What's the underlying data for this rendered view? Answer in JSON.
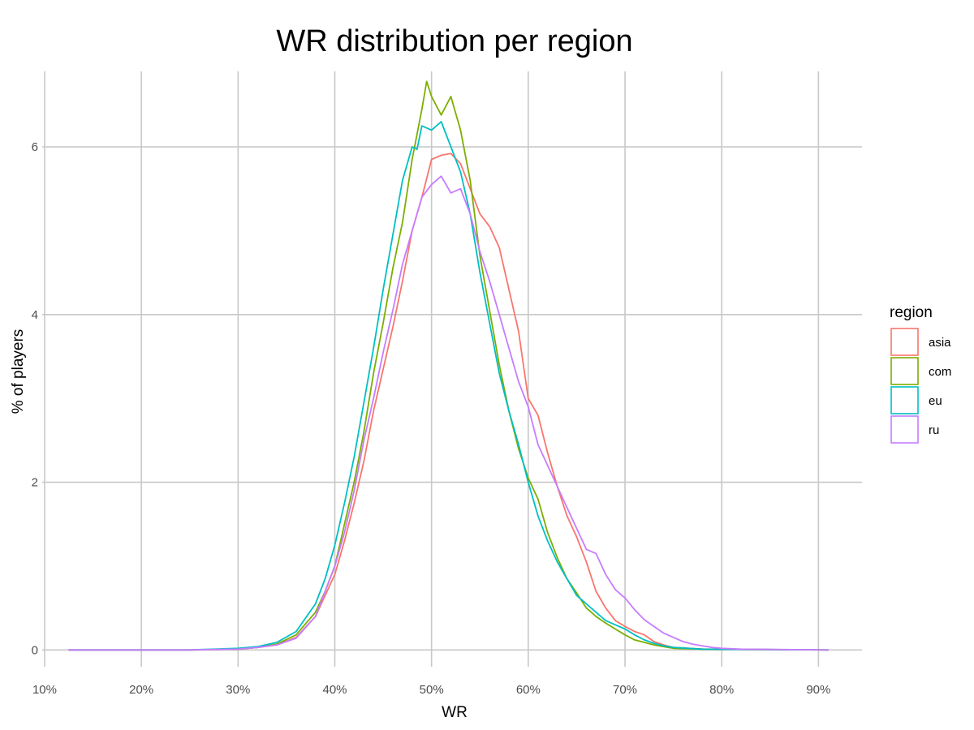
{
  "chart_data": {
    "type": "line",
    "title": "WR distribution per region",
    "xlabel": "WR",
    "ylabel": "% of players",
    "xlim": [
      0.0975,
      0.945
    ],
    "ylim": [
      -0.2,
      6.9
    ],
    "x_ticks": [
      0.1,
      0.2,
      0.3,
      0.4,
      0.5,
      0.6,
      0.7,
      0.8,
      0.9
    ],
    "x_tick_labels": [
      "10%",
      "20%",
      "30%",
      "40%",
      "50%",
      "60%",
      "70%",
      "80%",
      "90%"
    ],
    "y_ticks": [
      0,
      2,
      4,
      6
    ],
    "y_tick_labels": [
      "0",
      "2",
      "4",
      "6"
    ],
    "grid": true,
    "legend": {
      "title": "region",
      "position": "right"
    },
    "series": [
      {
        "name": "asia",
        "color": "#F8766D",
        "points": [
          [
            0.125,
            0
          ],
          [
            0.25,
            0
          ],
          [
            0.3,
            0.01
          ],
          [
            0.32,
            0.03
          ],
          [
            0.34,
            0.06
          ],
          [
            0.36,
            0.15
          ],
          [
            0.38,
            0.4
          ],
          [
            0.39,
            0.65
          ],
          [
            0.4,
            0.9
          ],
          [
            0.41,
            1.3
          ],
          [
            0.42,
            1.75
          ],
          [
            0.43,
            2.25
          ],
          [
            0.44,
            2.85
          ],
          [
            0.45,
            3.35
          ],
          [
            0.46,
            3.85
          ],
          [
            0.47,
            4.4
          ],
          [
            0.48,
            5.0
          ],
          [
            0.49,
            5.4
          ],
          [
            0.5,
            5.85
          ],
          [
            0.51,
            5.9
          ],
          [
            0.52,
            5.92
          ],
          [
            0.53,
            5.8
          ],
          [
            0.54,
            5.5
          ],
          [
            0.55,
            5.2
          ],
          [
            0.56,
            5.05
          ],
          [
            0.57,
            4.8
          ],
          [
            0.58,
            4.3
          ],
          [
            0.59,
            3.8
          ],
          [
            0.6,
            3.0
          ],
          [
            0.61,
            2.8
          ],
          [
            0.62,
            2.35
          ],
          [
            0.63,
            1.95
          ],
          [
            0.64,
            1.6
          ],
          [
            0.65,
            1.35
          ],
          [
            0.66,
            1.05
          ],
          [
            0.67,
            0.7
          ],
          [
            0.68,
            0.5
          ],
          [
            0.69,
            0.35
          ],
          [
            0.7,
            0.28
          ],
          [
            0.71,
            0.22
          ],
          [
            0.72,
            0.18
          ],
          [
            0.73,
            0.1
          ],
          [
            0.74,
            0.06
          ],
          [
            0.75,
            0.03
          ],
          [
            0.78,
            0.01
          ],
          [
            0.91,
            0
          ]
        ]
      },
      {
        "name": "com",
        "color": "#7CAE00",
        "points": [
          [
            0.125,
            0
          ],
          [
            0.25,
            0
          ],
          [
            0.3,
            0.01
          ],
          [
            0.32,
            0.03
          ],
          [
            0.34,
            0.07
          ],
          [
            0.36,
            0.18
          ],
          [
            0.38,
            0.45
          ],
          [
            0.39,
            0.7
          ],
          [
            0.4,
            1.0
          ],
          [
            0.41,
            1.5
          ],
          [
            0.42,
            2.0
          ],
          [
            0.43,
            2.6
          ],
          [
            0.44,
            3.3
          ],
          [
            0.45,
            3.9
          ],
          [
            0.46,
            4.55
          ],
          [
            0.47,
            5.1
          ],
          [
            0.48,
            5.85
          ],
          [
            0.49,
            6.45
          ],
          [
            0.495,
            6.78
          ],
          [
            0.5,
            6.6
          ],
          [
            0.51,
            6.38
          ],
          [
            0.52,
            6.6
          ],
          [
            0.53,
            6.2
          ],
          [
            0.54,
            5.6
          ],
          [
            0.55,
            4.7
          ],
          [
            0.56,
            4.05
          ],
          [
            0.57,
            3.4
          ],
          [
            0.58,
            2.85
          ],
          [
            0.59,
            2.4
          ],
          [
            0.6,
            2.05
          ],
          [
            0.61,
            1.8
          ],
          [
            0.62,
            1.4
          ],
          [
            0.63,
            1.1
          ],
          [
            0.64,
            0.85
          ],
          [
            0.65,
            0.68
          ],
          [
            0.66,
            0.5
          ],
          [
            0.67,
            0.4
          ],
          [
            0.68,
            0.32
          ],
          [
            0.69,
            0.25
          ],
          [
            0.7,
            0.18
          ],
          [
            0.71,
            0.12
          ],
          [
            0.72,
            0.09
          ],
          [
            0.73,
            0.06
          ],
          [
            0.74,
            0.04
          ],
          [
            0.75,
            0.02
          ],
          [
            0.78,
            0.01
          ],
          [
            0.91,
            0
          ]
        ]
      },
      {
        "name": "eu",
        "color": "#00BFC4",
        "points": [
          [
            0.125,
            0
          ],
          [
            0.25,
            0
          ],
          [
            0.3,
            0.02
          ],
          [
            0.32,
            0.04
          ],
          [
            0.34,
            0.09
          ],
          [
            0.36,
            0.22
          ],
          [
            0.38,
            0.55
          ],
          [
            0.39,
            0.85
          ],
          [
            0.4,
            1.25
          ],
          [
            0.41,
            1.75
          ],
          [
            0.42,
            2.3
          ],
          [
            0.43,
            2.95
          ],
          [
            0.44,
            3.6
          ],
          [
            0.45,
            4.3
          ],
          [
            0.46,
            4.95
          ],
          [
            0.47,
            5.6
          ],
          [
            0.48,
            6.0
          ],
          [
            0.485,
            5.97
          ],
          [
            0.49,
            6.25
          ],
          [
            0.5,
            6.2
          ],
          [
            0.51,
            6.3
          ],
          [
            0.52,
            6.0
          ],
          [
            0.53,
            5.7
          ],
          [
            0.54,
            5.2
          ],
          [
            0.55,
            4.5
          ],
          [
            0.56,
            3.9
          ],
          [
            0.57,
            3.3
          ],
          [
            0.58,
            2.85
          ],
          [
            0.59,
            2.45
          ],
          [
            0.6,
            2.0
          ],
          [
            0.61,
            1.6
          ],
          [
            0.62,
            1.3
          ],
          [
            0.63,
            1.05
          ],
          [
            0.64,
            0.85
          ],
          [
            0.65,
            0.65
          ],
          [
            0.66,
            0.55
          ],
          [
            0.67,
            0.45
          ],
          [
            0.68,
            0.35
          ],
          [
            0.69,
            0.3
          ],
          [
            0.7,
            0.25
          ],
          [
            0.71,
            0.18
          ],
          [
            0.72,
            0.12
          ],
          [
            0.73,
            0.08
          ],
          [
            0.74,
            0.05
          ],
          [
            0.75,
            0.03
          ],
          [
            0.78,
            0.01
          ],
          [
            0.91,
            0
          ]
        ]
      },
      {
        "name": "ru",
        "color": "#C77CFF",
        "points": [
          [
            0.125,
            0
          ],
          [
            0.25,
            0
          ],
          [
            0.3,
            0.01
          ],
          [
            0.32,
            0.03
          ],
          [
            0.34,
            0.06
          ],
          [
            0.36,
            0.14
          ],
          [
            0.38,
            0.4
          ],
          [
            0.39,
            0.7
          ],
          [
            0.4,
            1.0
          ],
          [
            0.41,
            1.4
          ],
          [
            0.42,
            1.9
          ],
          [
            0.43,
            2.5
          ],
          [
            0.44,
            3.0
          ],
          [
            0.45,
            3.55
          ],
          [
            0.46,
            4.05
          ],
          [
            0.47,
            4.6
          ],
          [
            0.48,
            5.0
          ],
          [
            0.49,
            5.4
          ],
          [
            0.5,
            5.55
          ],
          [
            0.51,
            5.65
          ],
          [
            0.52,
            5.45
          ],
          [
            0.53,
            5.5
          ],
          [
            0.54,
            5.2
          ],
          [
            0.55,
            4.75
          ],
          [
            0.56,
            4.4
          ],
          [
            0.57,
            4.0
          ],
          [
            0.58,
            3.6
          ],
          [
            0.59,
            3.2
          ],
          [
            0.6,
            2.9
          ],
          [
            0.61,
            2.45
          ],
          [
            0.62,
            2.2
          ],
          [
            0.63,
            1.95
          ],
          [
            0.64,
            1.7
          ],
          [
            0.65,
            1.45
          ],
          [
            0.66,
            1.2
          ],
          [
            0.67,
            1.15
          ],
          [
            0.68,
            0.9
          ],
          [
            0.69,
            0.72
          ],
          [
            0.7,
            0.62
          ],
          [
            0.71,
            0.48
          ],
          [
            0.72,
            0.36
          ],
          [
            0.73,
            0.28
          ],
          [
            0.74,
            0.2
          ],
          [
            0.75,
            0.15
          ],
          [
            0.76,
            0.1
          ],
          [
            0.77,
            0.07
          ],
          [
            0.78,
            0.05
          ],
          [
            0.79,
            0.03
          ],
          [
            0.8,
            0.02
          ],
          [
            0.82,
            0.01
          ],
          [
            0.91,
            0
          ]
        ]
      }
    ]
  }
}
